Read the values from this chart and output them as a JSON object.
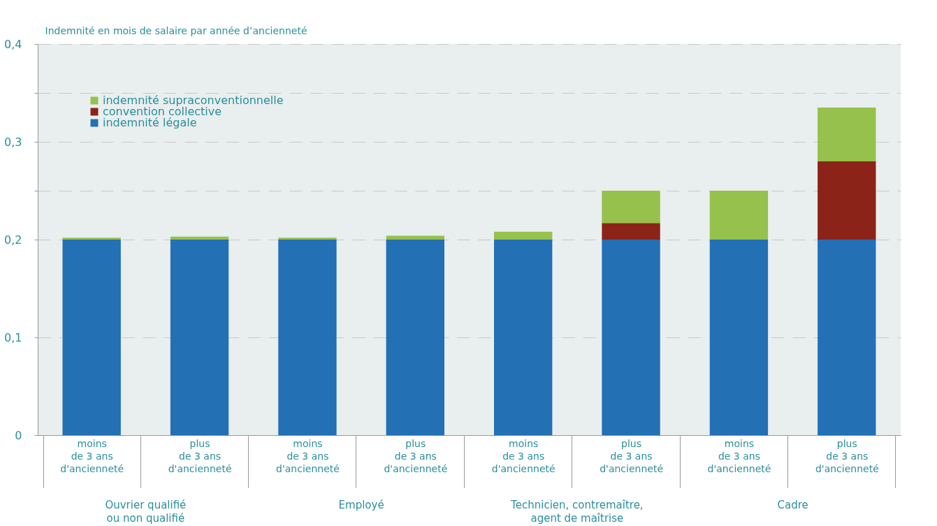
{
  "chart_data": {
    "type": "bar",
    "stacked": true,
    "ylabel": "Indemnité en mois de salaire par année d’ancienneté",
    "categories": [
      "moins\nde 3 ans\nd'ancienneté",
      "plus\nde 3 ans\nd'ancienneté",
      "moins\nde 3 ans\nd'ancienneté",
      "plus\nde 3 ans\nd'ancienneté",
      "moins\nde 3 ans\nd'ancienneté",
      "plus\nde 3 ans\nd'ancienneté",
      "moins\nde 3 ans\nd'ancienneté",
      "plus\nde 3 ans\nd'ancienneté"
    ],
    "series": [
      {
        "name": "indemnité légale",
        "color": "#2370b5",
        "values": [
          0.2,
          0.2,
          0.2,
          0.2,
          0.2,
          0.2,
          0.2,
          0.2
        ]
      },
      {
        "name": "convention collective",
        "color": "#8b2318",
        "values": [
          0,
          0,
          0,
          0,
          0,
          0.017,
          0,
          0.08
        ]
      },
      {
        "name": "indemnité supraconventionnelle",
        "color": "#96c14c",
        "values": [
          0.002,
          0.003,
          0.002,
          0.004,
          0.008,
          0.033,
          0.05,
          0.055
        ]
      }
    ],
    "ylim": [
      0,
      0.4
    ],
    "yticks": [
      0,
      {
        "value": 0.1,
        "label": "0,1"
      },
      {
        "value": 0.2,
        "label": "0,2"
      },
      {
        "value": 0.25,
        "label": null
      },
      {
        "value": 0.3,
        "label": "0,3"
      },
      {
        "value": 0.35,
        "label": null
      },
      {
        "value": 0.4,
        "label": "0,4"
      }
    ],
    "grid": "y",
    "legend": "top left",
    "annotations": [
      "Ouvrier qualifié\nou non qualifié",
      "Employé",
      "Technicien, contremaître,\nagent de maîtrise",
      "Cadre"
    ]
  }
}
